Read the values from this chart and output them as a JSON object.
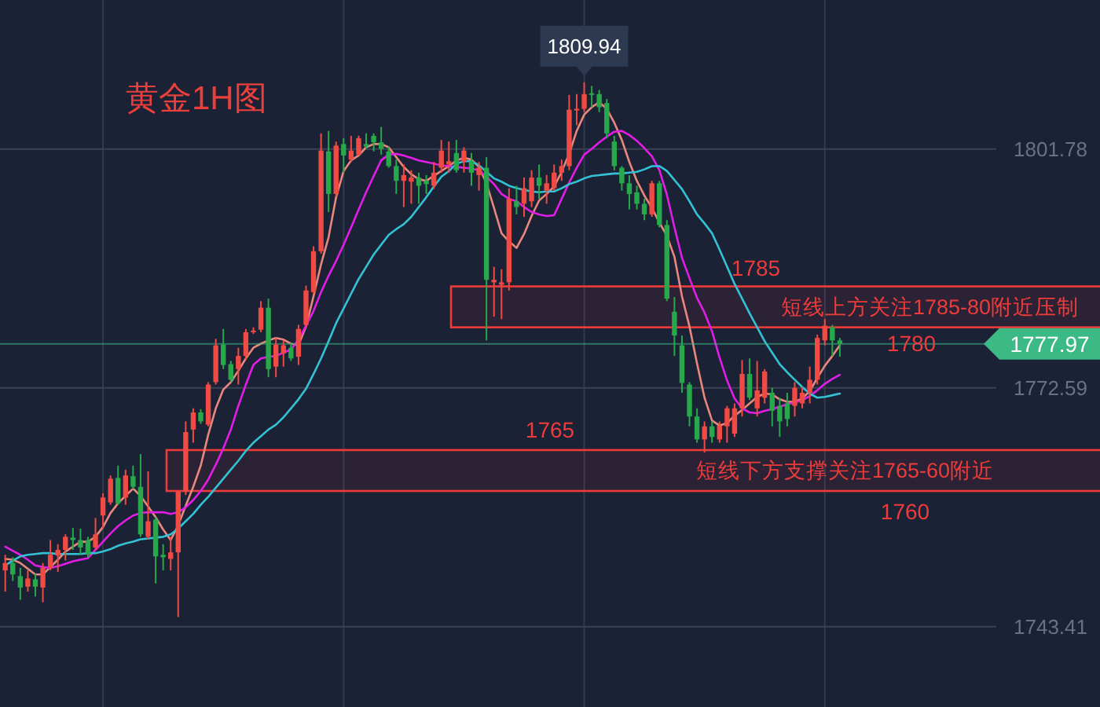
{
  "chart_data": {
    "type": "candlestick",
    "title": "黄金1H图",
    "categories": [
      null,
      null,
      null,
      null,
      null,
      null,
      null,
      null,
      null,
      null,
      null,
      null,
      null,
      null,
      null,
      null,
      null,
      null,
      null,
      null,
      null,
      null,
      null,
      null,
      null,
      null,
      null,
      null,
      null,
      null,
      null,
      null,
      null,
      null,
      null,
      null,
      null,
      null,
      null,
      null,
      null,
      null,
      null,
      null,
      null,
      null,
      null,
      null,
      null,
      null,
      null,
      null,
      null,
      null,
      null,
      null,
      null,
      null,
      null,
      null,
      null,
      null,
      null,
      null,
      null,
      null,
      null,
      null,
      null,
      null,
      null,
      null,
      null,
      null,
      null,
      null,
      null,
      null,
      null,
      null,
      null,
      null,
      null,
      null,
      null,
      null,
      null,
      null,
      null,
      null,
      null,
      null,
      null,
      null,
      null,
      null,
      null,
      null,
      null,
      null,
      null,
      null,
      null,
      null,
      null,
      null,
      null,
      null,
      null,
      null,
      null,
      null
    ],
    "ohlc": [
      [
        1750.3,
        1752.2,
        1747.7,
        1751.2
      ],
      [
        1751.2,
        1751.9,
        1749.0,
        1749.8
      ],
      [
        1749.6,
        1750.6,
        1746.7,
        1748.2
      ],
      [
        1748.3,
        1750.3,
        1747.7,
        1749.3
      ],
      [
        1749.2,
        1749.9,
        1747.1,
        1748.3
      ],
      [
        1748.2,
        1751.2,
        1746.4,
        1750.6
      ],
      [
        1750.6,
        1754.0,
        1750.3,
        1752.2
      ],
      [
        1752.1,
        1753.5,
        1750.1,
        1752.8
      ],
      [
        1752.8,
        1754.7,
        1751.5,
        1754.4
      ],
      [
        1754.3,
        1755.5,
        1752.8,
        1754.0
      ],
      [
        1754.0,
        1755.4,
        1752.2,
        1753.1
      ],
      [
        1754.0,
        1754.4,
        1751.9,
        1752.2
      ],
      [
        1753.1,
        1756.7,
        1752.8,
        1754.7
      ],
      [
        1757.0,
        1759.7,
        1755.4,
        1759.2
      ],
      [
        1758.6,
        1761.9,
        1758.3,
        1761.5
      ],
      [
        1761.6,
        1763.1,
        1758.3,
        1758.5
      ],
      [
        1759.2,
        1762.6,
        1758.3,
        1761.9
      ],
      [
        1761.8,
        1763.1,
        1760.2,
        1760.5
      ],
      [
        1760.5,
        1764.5,
        1754.4,
        1754.7
      ],
      [
        1754.4,
        1762.4,
        1754.1,
        1756.3
      ],
      [
        1756.5,
        1756.8,
        1748.7,
        1752.0
      ],
      [
        1752.2,
        1753.5,
        1750.3,
        1751.9
      ],
      [
        1751.7,
        1754.4,
        1750.3,
        1752.5
      ],
      [
        1752.5,
        1760.0,
        1744.6,
        1759.9
      ],
      [
        1759.9,
        1768.5,
        1759.5,
        1767.2
      ],
      [
        1767.5,
        1770.1,
        1765.9,
        1769.6
      ],
      [
        1769.6,
        1770.0,
        1768.2,
        1768.5
      ],
      [
        1768.1,
        1773.3,
        1767.9,
        1773.0
      ],
      [
        1773.3,
        1778.6,
        1773.0,
        1777.8
      ],
      [
        1777.9,
        1779.8,
        1774.9,
        1775.4
      ],
      [
        1775.5,
        1775.9,
        1773.3,
        1773.6
      ],
      [
        1774.9,
        1777.5,
        1773.0,
        1776.5
      ],
      [
        1776.5,
        1779.8,
        1776.0,
        1779.4
      ],
      [
        1779.4,
        1780.0,
        1779.2,
        1779.6
      ],
      [
        1779.7,
        1783.2,
        1779.4,
        1782.4
      ],
      [
        1782.4,
        1783.5,
        1773.9,
        1774.9
      ],
      [
        1775.2,
        1778.7,
        1773.9,
        1777.9
      ],
      [
        1776.8,
        1778.4,
        1775.2,
        1777.8
      ],
      [
        1777.5,
        1778.1,
        1775.9,
        1776.2
      ],
      [
        1776.4,
        1780.3,
        1775.4,
        1779.8
      ],
      [
        1780.3,
        1785.1,
        1780.0,
        1784.5
      ],
      [
        1784.3,
        1789.9,
        1784.1,
        1789.3
      ],
      [
        1789.3,
        1803.7,
        1789.0,
        1801.6
      ],
      [
        1801.5,
        1804.0,
        1794.1,
        1796.3
      ],
      [
        1796.3,
        1802.7,
        1796.0,
        1802.2
      ],
      [
        1802.4,
        1803.1,
        1798.9,
        1801.0
      ],
      [
        1800.5,
        1803.4,
        1800.2,
        1801.6
      ],
      [
        1801.1,
        1803.4,
        1801.0,
        1803.1
      ],
      [
        1802.4,
        1803.7,
        1801.8,
        1802.1
      ],
      [
        1803.4,
        1803.7,
        1801.5,
        1802.6
      ],
      [
        1802.6,
        1804.5,
        1801.1,
        1801.8
      ],
      [
        1801.5,
        1802.1,
        1799.5,
        1799.7
      ],
      [
        1799.7,
        1800.5,
        1796.3,
        1797.9
      ],
      [
        1797.9,
        1799.9,
        1794.7,
        1798.6
      ],
      [
        1797.8,
        1799.2,
        1795.1,
        1798.3
      ],
      [
        1798.3,
        1798.9,
        1795.1,
        1797.3
      ],
      [
        1797.9,
        1798.6,
        1796.3,
        1797.5
      ],
      [
        1797.3,
        1800.2,
        1796.9,
        1798.9
      ],
      [
        1799.5,
        1802.9,
        1798.9,
        1801.6
      ],
      [
        1799.9,
        1802.7,
        1798.9,
        1800.3
      ],
      [
        1801.3,
        1802.9,
        1798.9,
        1799.2
      ],
      [
        1800.2,
        1802.0,
        1798.9,
        1801.6
      ],
      [
        1800.3,
        1801.3,
        1797.3,
        1798.9
      ],
      [
        1798.6,
        1800.2,
        1796.7,
        1799.5
      ],
      [
        1799.5,
        1800.8,
        1778.4,
        1785.8
      ],
      [
        1785.5,
        1787.4,
        1781.3,
        1785.8
      ],
      [
        1785.2,
        1787.1,
        1781.0,
        1785.5
      ],
      [
        1785.5,
        1797.0,
        1784.5,
        1795.7
      ],
      [
        1795.4,
        1797.3,
        1793.8,
        1794.7
      ],
      [
        1795.1,
        1798.3,
        1793.5,
        1797.0
      ],
      [
        1795.4,
        1799.2,
        1794.7,
        1798.3
      ],
      [
        1798.3,
        1799.9,
        1795.7,
        1797.3
      ],
      [
        1796.7,
        1798.6,
        1795.1,
        1797.6
      ],
      [
        1797.0,
        1799.9,
        1796.7,
        1798.9
      ],
      [
        1798.9,
        1800.5,
        1797.9,
        1799.7
      ],
      [
        1799.7,
        1808.4,
        1799.2,
        1806.6
      ],
      [
        1806.5,
        1808.5,
        1804.7,
        1806.7
      ],
      [
        1806.7,
        1809.94,
        1806.3,
        1808.5
      ],
      [
        1808.6,
        1809.5,
        1806.9,
        1808.4
      ],
      [
        1808.5,
        1809.0,
        1806.3,
        1806.9
      ],
      [
        1807.4,
        1807.9,
        1803.1,
        1803.7
      ],
      [
        1802.7,
        1803.4,
        1799.2,
        1799.7
      ],
      [
        1799.5,
        1799.7,
        1796.7,
        1797.6
      ],
      [
        1797.6,
        1798.6,
        1794.4,
        1796.3
      ],
      [
        1796.5,
        1797.3,
        1794.4,
        1795.1
      ],
      [
        1795.1,
        1795.7,
        1793.1,
        1793.8
      ],
      [
        1793.8,
        1797.9,
        1793.5,
        1797.6
      ],
      [
        1797.6,
        1797.9,
        1792.2,
        1792.5
      ],
      [
        1792.5,
        1793.1,
        1783.2,
        1783.5
      ],
      [
        1781.9,
        1783.7,
        1776.5,
        1779.0
      ],
      [
        1777.8,
        1779.0,
        1772.0,
        1773.2
      ],
      [
        1773.0,
        1773.3,
        1767.9,
        1769.1
      ],
      [
        1769.1,
        1770.1,
        1765.9,
        1766.3
      ],
      [
        1766.3,
        1768.5,
        1764.7,
        1767.9
      ],
      [
        1767.9,
        1768.5,
        1765.9,
        1766.6
      ],
      [
        1766.3,
        1768.5,
        1765.9,
        1768.0
      ],
      [
        1767.9,
        1770.4,
        1765.9,
        1770.1
      ],
      [
        1767.0,
        1770.7,
        1766.6,
        1770.1
      ],
      [
        1770.1,
        1776.0,
        1769.1,
        1774.3
      ],
      [
        1774.3,
        1776.2,
        1771.1,
        1771.4
      ],
      [
        1770.1,
        1775.9,
        1769.1,
        1772.3
      ],
      [
        1771.4,
        1774.9,
        1770.7,
        1774.6
      ],
      [
        1772.0,
        1772.6,
        1767.9,
        1769.8
      ],
      [
        1770.4,
        1771.4,
        1766.6,
        1768.5
      ],
      [
        1770.7,
        1772.0,
        1767.9,
        1768.8
      ],
      [
        1770.4,
        1773.3,
        1769.1,
        1772.6
      ],
      [
        1770.7,
        1772.7,
        1770.1,
        1772.0
      ],
      [
        1772.0,
        1775.2,
        1770.7,
        1773.6
      ],
      [
        1773.6,
        1779.1,
        1773.0,
        1778.7
      ],
      [
        1778.4,
        1781.0,
        1777.8,
        1780.2
      ],
      [
        1780.0,
        1780.3,
        1776.5,
        1778.4
      ],
      [
        1778.4,
        1778.7,
        1776.4,
        1777.97
      ]
    ],
    "colors": [
      "#ef4a43",
      "#27a84a",
      "#27a84a",
      "#ef4a43",
      "#27a84a",
      "#ef4a43",
      "#ef4a43",
      "#ef4a43",
      "#ef4a43",
      "#27a84a",
      "#27a84a",
      "#27a84a",
      "#ef4a43",
      "#ef4a43",
      "#ef4a43",
      "#27a84a",
      "#ef4a43",
      "#27a84a",
      "#27a84a",
      "#ef4a43",
      "#27a84a",
      "#27a84a",
      "#ef4a43",
      "#ef4a43",
      "#ef4a43",
      "#ef4a43",
      "#27a84a",
      "#ef4a43",
      "#ef4a43",
      "#27a84a",
      "#27a84a",
      "#ef4a43",
      "#ef4a43",
      "#ef4a43",
      "#ef4a43",
      "#27a84a",
      "#ef4a43",
      "#ef4a43",
      "#27a84a",
      "#ef4a43",
      "#ef4a43",
      "#ef4a43",
      "#ef4a43",
      "#27a84a",
      "#ef4a43",
      "#27a84a",
      "#ef4a43",
      "#ef4a43",
      "#27a84a",
      "#27a84a",
      "#27a84a",
      "#27a84a",
      "#27a84a",
      "#ef4a43",
      "#ef4a43",
      "#27a84a",
      "#27a84a",
      "#ef4a43",
      "#ef4a43",
      "#ef4a43",
      "#27a84a",
      "#ef4a43",
      "#27a84a",
      "#ef4a43",
      "#27a84a",
      "#ef4a43",
      "#ef4a43",
      "#ef4a43",
      "#27a84a",
      "#ef4a43",
      "#ef4a43",
      "#27a84a",
      "#ef4a43",
      "#ef4a43",
      "#ef4a43",
      "#ef4a43",
      "#ef4a43",
      "#ef4a43",
      "#27a84a",
      "#27a84a",
      "#27a84a",
      "#27a84a",
      "#27a84a",
      "#27a84a",
      "#27a84a",
      "#27a84a",
      "#ef4a43",
      "#27a84a",
      "#27a84a",
      "#27a84a",
      "#27a84a",
      "#27a84a",
      "#27a84a",
      "#ef4a43",
      "#27a84a",
      "#ef4a43",
      "#ef4a43",
      "#ef4a43",
      "#ef4a43",
      "#27a84a",
      "#ef4a43",
      "#ef4a43",
      "#27a84a",
      "#27a84a",
      "#27a84a",
      "#ef4a43",
      "#ef4a43",
      "#ef4a43",
      "#ef4a43",
      "#ef4a43",
      "#27a84a",
      "#27a84a"
    ],
    "series": [
      {
        "type": "line",
        "color": "#e8877c",
        "values": [
          1751.7,
          1751.6,
          1751.2,
          1750.5,
          1749.8,
          1749.8,
          1750.7,
          1751.6,
          1752.6,
          1753.2,
          1753.8,
          1753.8,
          1754.4,
          1755.6,
          1757.3,
          1758.5,
          1759.4,
          1760.3,
          1759.4,
          1758.1,
          1756.8,
          1755.3,
          1754.0,
          1755.8,
          1758.2,
          1760.5,
          1763.1,
          1766.9,
          1770.1,
          1772.4,
          1773.3,
          1774.7,
          1776.2,
          1777.5,
          1778.0,
          1778.4,
          1778.7,
          1778.5,
          1778.0,
          1777.8,
          1780.1,
          1783.8,
          1787.7,
          1791.0,
          1795.9,
          1799.1,
          1800.4,
          1801.0,
          1802.0,
          1802.4,
          1802.4,
          1802.0,
          1800.8,
          1799.6,
          1798.7,
          1798.1,
          1797.9,
          1798.5,
          1799.1,
          1799.7,
          1800.4,
          1800.7,
          1800.5,
          1799.6,
          1797.6,
          1794.6,
          1791.5,
          1790.5,
          1789.7,
          1791.4,
          1793.6,
          1795.5,
          1796.3,
          1797.2,
          1799.0,
          1801.2,
          1804.0,
          1806.0,
          1806.9,
          1807.5,
          1806.7,
          1805.0,
          1802.9,
          1800.2,
          1797.9,
          1796.1,
          1794.6,
          1792.8,
          1791.2,
          1788.6,
          1783.8,
          1780.1,
          1775.6,
          1771.4,
          1768.6,
          1768.0,
          1768.3,
          1769.2,
          1769.9,
          1770.7,
          1771.5,
          1771.9,
          1771.8,
          1771.2,
          1770.9,
          1770.9,
          1771.3,
          1772.2,
          1773.8,
          1775.3,
          1776.5,
          1777.8
        ]
      },
      {
        "type": "line",
        "color": "#e21de6",
        "values": [
          1753.2,
          1752.7,
          1752.2,
          1751.6,
          1750.9,
          1750.7,
          1750.6,
          1750.8,
          1751.1,
          1751.4,
          1751.6,
          1751.8,
          1752.8,
          1753.8,
          1754.8,
          1755.7,
          1756.4,
          1757.0,
          1757.3,
          1757.4,
          1757.4,
          1757.4,
          1757.2,
          1757.4,
          1758.0,
          1758.9,
          1760.0,
          1761.4,
          1763.2,
          1765.2,
          1767.5,
          1770.4,
          1773.0,
          1775.4,
          1776.2,
          1776.4,
          1776.5,
          1776.9,
          1777.3,
          1778.5,
          1780.2,
          1782.0,
          1784.3,
          1786.3,
          1788.1,
          1790.1,
          1792.2,
          1794.4,
          1796.5,
          1798.5,
          1800.4,
          1801.1,
          1801.2,
          1801.0,
          1800.7,
          1800.4,
          1800.2,
          1800.0,
          1799.8,
          1799.7,
          1799.6,
          1799.5,
          1799.4,
          1799.2,
          1798.4,
          1797.5,
          1796.3,
          1795.7,
          1795.4,
          1794.7,
          1794.1,
          1793.8,
          1793.6,
          1793.7,
          1795.7,
          1797.7,
          1799.5,
          1801.1,
          1801.8,
          1802.6,
          1803.3,
          1803.9,
          1804.0,
          1803.5,
          1802.8,
          1801.9,
          1800.9,
          1799.2,
          1796.2,
          1792.2,
          1788.5,
          1786.0,
          1783.6,
          1781.8,
          1779.5,
          1776.3,
          1773.5,
          1771.3,
          1770.1,
          1769.6,
          1769.5,
          1769.8,
          1770.0,
          1770.3,
          1770.6,
          1770.8,
          1771.1,
          1771.6,
          1772.3,
          1773.1,
          1773.7,
          1774.2
        ]
      },
      {
        "type": "line",
        "color": "#33c2d4",
        "values": [
          1750.9,
          1751.5,
          1752.0,
          1752.2,
          1752.3,
          1752.4,
          1752.4,
          1752.3,
          1752.3,
          1752.3,
          1752.3,
          1752.4,
          1752.4,
          1752.6,
          1752.9,
          1753.3,
          1753.6,
          1753.8,
          1754.1,
          1754.2,
          1754.3,
          1754.4,
          1754.7,
          1755.4,
          1756.3,
          1757.2,
          1758.3,
          1759.3,
          1760.4,
          1761.5,
          1762.6,
          1763.7,
          1764.9,
          1765.9,
          1766.7,
          1767.5,
          1768.1,
          1769.0,
          1770.1,
          1771.2,
          1772.5,
          1774.3,
          1776.2,
          1778.3,
          1780.5,
          1782.3,
          1784.1,
          1785.9,
          1787.4,
          1788.9,
          1790.1,
          1791.3,
          1792.0,
          1792.6,
          1793.5,
          1794.7,
          1795.9,
          1797.2,
          1798.4,
          1799.1,
          1800.0,
          1800.3,
          1800.3,
          1799.8,
          1799.0,
          1798.2,
          1797.8,
          1797.3,
          1797.0,
          1796.8,
          1796.6,
          1796.5,
          1796.6,
          1796.6,
          1797.0,
          1797.5,
          1797.8,
          1798.2,
          1798.5,
          1798.6,
          1798.7,
          1798.8,
          1798.8,
          1798.9,
          1799.0,
          1799.3,
          1799.7,
          1799.7,
          1799.1,
          1798.0,
          1796.9,
          1795.4,
          1793.8,
          1792.7,
          1791.5,
          1789.5,
          1787.4,
          1785.3,
          1783.5,
          1781.7,
          1780.0,
          1778.3,
          1776.9,
          1775.5,
          1774.5,
          1773.6,
          1772.7,
          1771.9,
          1771.4,
          1771.5,
          1771.7,
          1771.9
        ]
      }
    ],
    "ylim": [
      1733.6,
      1820.0
    ],
    "yticks": [
      1743.41,
      1772.59,
      1801.78
    ],
    "grid": true,
    "bands": [
      {
        "axis": "y",
        "from": 1780,
        "to": 1785,
        "label": "短线上方关注1785-80附近压制",
        "color": "#f03b3b"
      },
      {
        "axis": "y",
        "from": 1760,
        "to": 1765,
        "label": "短线下方支撑关注1765-60附近",
        "color": "#f03b3b"
      }
    ],
    "ref_lines": [
      {
        "axis": "y",
        "value": 1777.97,
        "label": "1777.97",
        "color": "#3cba86"
      }
    ],
    "annotations": [
      {
        "text": "1809.94",
        "y": 1809.94
      },
      "1785",
      "1780",
      "1765",
      "1760"
    ]
  }
}
